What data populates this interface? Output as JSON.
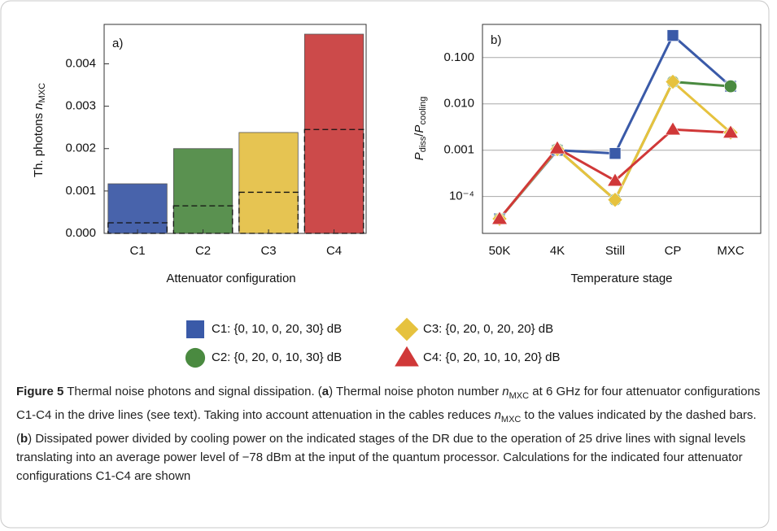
{
  "chart_data": [
    {
      "type": "bar",
      "panel": "a)",
      "ylabel_parts": [
        "Th. photons ",
        "n",
        "MXC"
      ],
      "xlabel": "Attenuator configuration",
      "categories": [
        "C1",
        "C2",
        "C3",
        "C4"
      ],
      "values": [
        0.00117,
        0.002,
        0.00238,
        0.0047
      ],
      "dashed_values": [
        0.00025,
        0.00065,
        0.00097,
        0.00245
      ],
      "colors": [
        "#4863ab",
        "#5a9150",
        "#e6c452",
        "#cc4a4a"
      ],
      "ylim": [
        0,
        0.0047
      ],
      "yticks": [
        {
          "value": 0,
          "label": "0.000"
        },
        {
          "value": 0.001,
          "label": "0.001"
        },
        {
          "value": 0.002,
          "label": "0.002"
        },
        {
          "value": 0.003,
          "label": "0.003"
        },
        {
          "value": 0.004,
          "label": "0.004"
        }
      ],
      "grid": false
    },
    {
      "type": "line",
      "panel": "b)",
      "ylabel_parts": [
        "P",
        "diss",
        "/",
        "P",
        "cooling"
      ],
      "xlabel": "Temperature stage",
      "categories": [
        "50K",
        "4K",
        "Still",
        "CP",
        "MXC"
      ],
      "log_y": true,
      "ylim": [
        1.6e-05,
        0.52
      ],
      "yticks": [
        {
          "value": 0.0001,
          "label": "10⁻⁴"
        },
        {
          "value": 0.001,
          "label": "0.001"
        },
        {
          "value": 0.01,
          "label": "0.010"
        },
        {
          "value": 0.1,
          "label": "0.100"
        }
      ],
      "grid": true,
      "series": [
        {
          "name": "C1: {0, 10, 0, 20, 30} dB",
          "color": "#3a5aa8",
          "marker": "square",
          "values": [
            3.3e-05,
            0.001,
            0.00085,
            0.3,
            0.024
          ]
        },
        {
          "name": "C2: {0, 20, 0, 10, 30} dB",
          "color": "#4a8a40",
          "marker": "circle",
          "values": [
            3.3e-05,
            0.00105,
            8.5e-05,
            0.03,
            0.024
          ]
        },
        {
          "name": "C3: {0, 20, 0, 20, 20} dB",
          "color": "#e6c23e",
          "marker": "diamond",
          "values": [
            3.3e-05,
            0.00105,
            8.5e-05,
            0.03,
            0.0024
          ]
        },
        {
          "name": "C4: {0, 20, 10, 10, 20} dB",
          "color": "#d03838",
          "marker": "triangle",
          "values": [
            3.3e-05,
            0.0011,
            0.00022,
            0.0028,
            0.0024
          ]
        }
      ]
    }
  ],
  "caption": {
    "label": "Figure 5",
    "parts": [
      " Thermal noise photons and signal dissipation. (",
      "a",
      ") Thermal noise photon number ",
      "n",
      "MXC",
      " at 6 GHz for four attenuator configurations C1-C4 in the drive lines (see text). Taking into account attenuation in the cables reduces ",
      "n",
      "MXC",
      " to the values indicated by the dashed bars. (",
      "b",
      ") Dissipated power divided by cooling power on the indicated stages of the DR due to the operation of 25 drive lines with signal levels translating into an average power level of −78 dBm at the input of the quantum processor. Calculations for the indicated four attenuator configurations C1-C4 are shown"
    ]
  }
}
